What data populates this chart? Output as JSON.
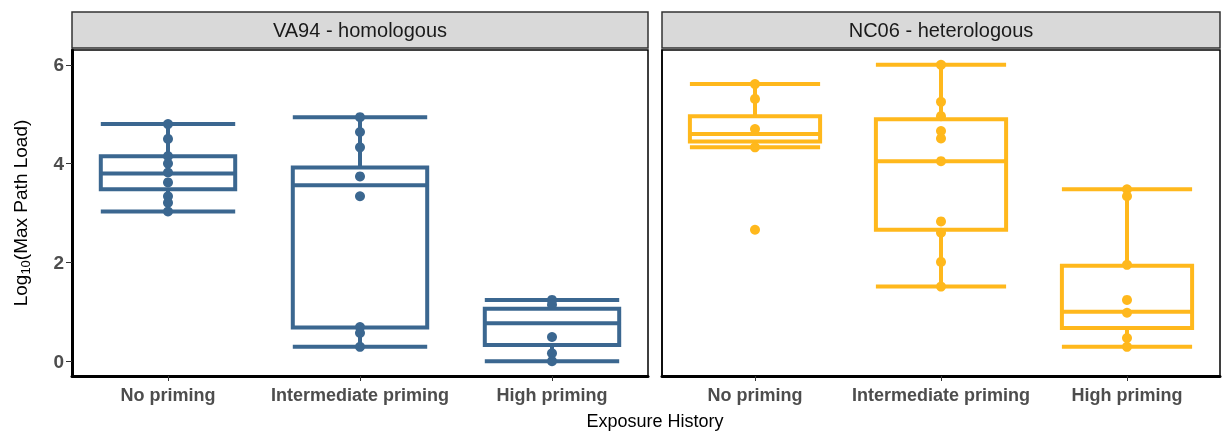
{
  "chart_data": [
    {
      "type": "box",
      "title": "VA94 - homologous",
      "xlabel": "Exposure History",
      "ylabel": "Log$_{10}$(Max Path Load)",
      "categories": [
        "No priming",
        "Intermediate priming",
        "High priming"
      ],
      "ylim": [
        -0.3,
        6.3
      ],
      "yticks": [
        0,
        2,
        4,
        6
      ],
      "series": [
        {
          "color": "#3b6790",
          "boxes": [
            {
              "low": 3.03,
              "q1": 3.48,
              "median": 3.8,
              "q3": 4.15,
              "high": 4.8
            },
            {
              "low": 0.29,
              "q1": 0.68,
              "median": 3.56,
              "q3": 3.92,
              "high": 4.94
            },
            {
              "low": 0.0,
              "q1": 0.33,
              "median": 0.77,
              "q3": 1.06,
              "high": 1.24
            }
          ]
        },
        {
          "type": "scatter",
          "color": "#3b6790",
          "x": [
            "No priming",
            "No priming",
            "No priming",
            "No priming",
            "No priming",
            "No priming",
            "No priming",
            "No priming",
            "No priming",
            "Intermediate priming",
            "Intermediate priming",
            "Intermediate priming",
            "Intermediate priming",
            "Intermediate priming",
            "Intermediate priming",
            "Intermediate priming",
            "Intermediate priming",
            "High priming",
            "High priming",
            "High priming",
            "High priming",
            "High priming"
          ],
          "values": [
            4.8,
            4.5,
            4.15,
            4.0,
            3.82,
            3.62,
            3.34,
            3.21,
            3.03,
            4.94,
            4.64,
            4.33,
            3.74,
            3.34,
            0.69,
            0.57,
            0.29,
            1.24,
            1.14,
            0.49,
            0.16,
            0.0
          ]
        }
      ]
    },
    {
      "type": "box",
      "title": "NC06 - heterologous",
      "tick_labels": "x",
      "categories": [
        "No priming",
        "Intermediate priming",
        "High priming"
      ],
      "ylim": [
        -0.3,
        6.3
      ],
      "yticks": [
        0,
        2,
        4,
        6
      ],
      "series": [
        {
          "color": "#ffb81c",
          "boxes": [
            {
              "low": 4.33,
              "q1": 4.45,
              "median": 4.6,
              "q3": 4.96,
              "high": 5.61
            },
            {
              "low": 1.51,
              "q1": 2.66,
              "median": 4.05,
              "q3": 4.9,
              "high": 6.0
            },
            {
              "low": 0.29,
              "q1": 0.67,
              "median": 1.0,
              "q3": 1.93,
              "high": 3.48
            }
          ]
        },
        {
          "type": "scatter",
          "color": "#ffb81c",
          "x": [
            "No priming",
            "No priming",
            "No priming",
            "No priming",
            "No priming",
            "Intermediate priming",
            "Intermediate priming",
            "Intermediate priming",
            "Intermediate priming",
            "Intermediate priming",
            "Intermediate priming",
            "Intermediate priming",
            "Intermediate priming",
            "Intermediate priming",
            "Intermediate priming",
            "High priming",
            "High priming",
            "High priming",
            "High priming",
            "High priming",
            "High priming",
            "High priming"
          ],
          "values": [
            5.61,
            5.31,
            4.7,
            4.33,
            2.66,
            6.0,
            5.25,
            4.96,
            4.66,
            4.51,
            4.05,
            2.83,
            2.6,
            2.01,
            1.51,
            3.48,
            3.34,
            1.95,
            1.24,
            0.98,
            0.47,
            0.29
          ]
        }
      ]
    }
  ]
}
